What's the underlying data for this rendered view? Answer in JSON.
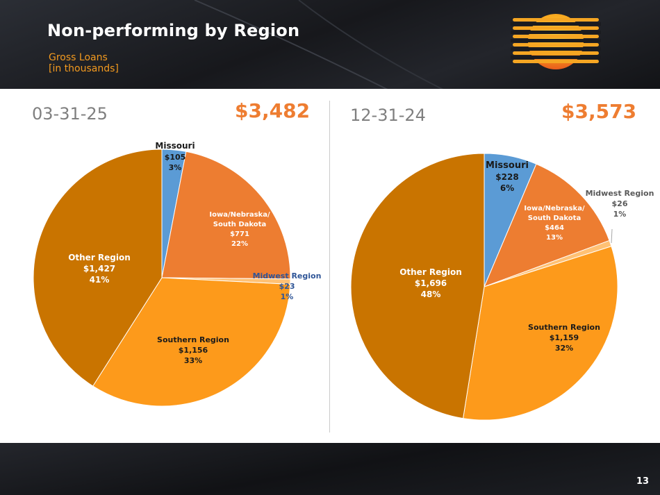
{
  "slide": {
    "title": "Non-performing by Region",
    "subtitle_line1": "Gross Loans",
    "subtitle_line2": "[in thousands]",
    "page_number": "13"
  },
  "colors": {
    "missouri": "#5b9bd5",
    "iowa": "#ed7d31",
    "midwest": "#ffc174",
    "southern": "#fd9a1b",
    "other": "#c97400",
    "accent": "#ee7d31"
  },
  "chart_data": [
    {
      "type": "pie",
      "date": "03-31-25",
      "total": "$3,482",
      "slices": [
        {
          "key": "missouri",
          "name": "Missouri",
          "value": 105,
          "value_label": "$105",
          "percent_label": "3%"
        },
        {
          "key": "iowa",
          "name": "Iowa/Nebraska/ South Dakota",
          "name_line1": "Iowa/Nebraska/",
          "name_line2": "South Dakota",
          "value": 771,
          "value_label": "$771",
          "percent_label": "22%"
        },
        {
          "key": "midwest",
          "name": "Midwest Region",
          "value": 23,
          "value_label": "$23",
          "percent_label": "1%"
        },
        {
          "key": "southern",
          "name": "Southern Region",
          "value": 1156,
          "value_label": "$1,156",
          "percent_label": "33%"
        },
        {
          "key": "other",
          "name": "Other Region",
          "value": 1427,
          "value_label": "$1,427",
          "percent_label": "41%"
        }
      ]
    },
    {
      "type": "pie",
      "date": "12-31-24",
      "total": "$3,573",
      "slices": [
        {
          "key": "missouri",
          "name": "Missouri",
          "value": 228,
          "value_label": "$228",
          "percent_label": "6%"
        },
        {
          "key": "iowa",
          "name": "Iowa/Nebraska/ South Dakota",
          "name_line1": "Iowa/Nebraska/",
          "name_line2": "South Dakota",
          "value": 464,
          "value_label": "$464",
          "percent_label": "13%"
        },
        {
          "key": "midwest",
          "name": "Midwest Region",
          "value": 26,
          "value_label": "$26",
          "percent_label": "1%"
        },
        {
          "key": "southern",
          "name": "Southern Region",
          "value": 1159,
          "value_label": "$1,159",
          "percent_label": "32%"
        },
        {
          "key": "other",
          "name": "Other Region",
          "value": 1696,
          "value_label": "$1,696",
          "percent_label": "48%"
        }
      ]
    }
  ]
}
